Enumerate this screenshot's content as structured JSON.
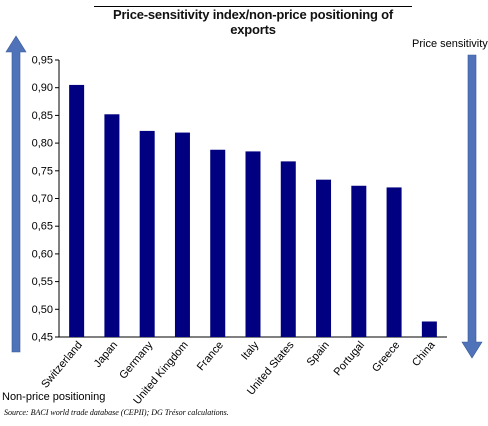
{
  "labels": {
    "title": "Price-sensitivity index/non-price positioning of exports",
    "top_right": "Price sensitivity",
    "bottom_left": "Non-price positioning",
    "source": "Source: BACI world trade database (CEPII); DG Trésor calculations."
  },
  "colors": {
    "bar": "#000080",
    "arrow": "#4f72b8",
    "axis": "#000000"
  },
  "chart_data": {
    "type": "bar",
    "title": "Price-sensitivity index/non-price positioning of exports",
    "categories": [
      "Switzerland",
      "Japan",
      "Germany",
      "United Kingdom",
      "France",
      "Italy",
      "United States",
      "Spain",
      "Portugal",
      "Greece",
      "China"
    ],
    "values": [
      0.905,
      0.852,
      0.822,
      0.819,
      0.788,
      0.785,
      0.767,
      0.734,
      0.723,
      0.72,
      0.478
    ],
    "ylim": [
      0.45,
      0.95
    ],
    "yticks": [
      "0,45",
      "0,50",
      "0,55",
      "0,60",
      "0,65",
      "0,70",
      "0,75",
      "0,80",
      "0,85",
      "0,90",
      "0,95"
    ],
    "grid": false,
    "legend": "none"
  }
}
